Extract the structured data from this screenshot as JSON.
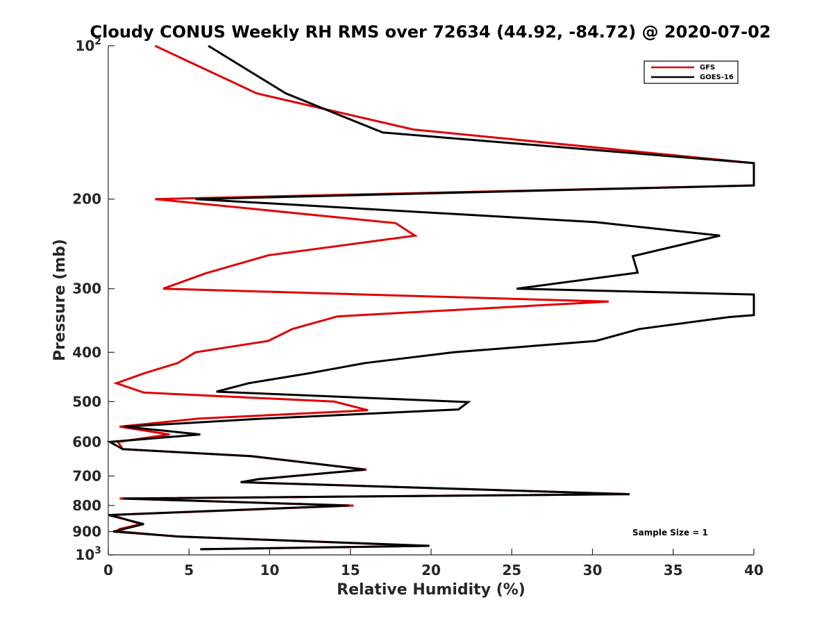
{
  "chart_data": {
    "type": "line",
    "title": "Cloudy CONUS Weekly RH RMS over 72634 (44.92, -84.72) @ 2020-07-02",
    "xlabel": "Relative Humidity (%)",
    "ylabel": "Pressure (mb)",
    "xlim": [
      0,
      40
    ],
    "ylim": [
      100,
      1000
    ],
    "yscale": "log",
    "y_reversed": true,
    "grid": false,
    "legend_position": "top-right",
    "annotation": "Sample Size = 1",
    "x_ticks": [
      "0",
      "5",
      "10",
      "15",
      "20",
      "25",
      "30",
      "35",
      "40"
    ],
    "y_ticks": [
      {
        "value": 100,
        "base": "10",
        "exp": "2"
      },
      {
        "value": 200,
        "base": "200",
        "exp": ""
      },
      {
        "value": 300,
        "base": "300",
        "exp": ""
      },
      {
        "value": 400,
        "base": "400",
        "exp": ""
      },
      {
        "value": 500,
        "base": "500",
        "exp": ""
      },
      {
        "value": 600,
        "base": "600",
        "exp": ""
      },
      {
        "value": 700,
        "base": "700",
        "exp": ""
      },
      {
        "value": 800,
        "base": "800",
        "exp": ""
      },
      {
        "value": 900,
        "base": "900",
        "exp": ""
      },
      {
        "value": 1000,
        "base": "10",
        "exp": "3"
      }
    ],
    "series": [
      {
        "name": "GFS",
        "color": "#e00000",
        "x": [
          2.9,
          9.2,
          18.9,
          40.0,
          40.0,
          40.0,
          40.0,
          2.9,
          17.8,
          19.0,
          9.9,
          6.0,
          3.4,
          31.0,
          14.2,
          11.4,
          9.9,
          5.4,
          4.3,
          2.2,
          0.5,
          2.2,
          14.0,
          16.1,
          5.6,
          0.7,
          3.8,
          0.6,
          0.9,
          8.8,
          16.0,
          9.3,
          8.4,
          32.3,
          0.7,
          15.2,
          0.2,
          2.0,
          0.7,
          0.8,
          4.2,
          19.8,
          5.7
        ],
        "y": [
          100,
          124,
          146,
          170,
          173,
          184,
          188,
          200,
          223,
          236,
          258,
          280,
          300,
          318,
          340,
          360,
          380,
          400,
          420,
          440,
          460,
          480,
          500,
          520,
          540,
          560,
          580,
          600,
          620,
          640,
          680,
          710,
          720,
          760,
          775,
          800,
          835,
          870,
          890,
          900,
          920,
          960,
          975
        ]
      },
      {
        "name": "GOES-16",
        "color": "#000000",
        "x": [
          6.2,
          11.0,
          17.0,
          40.0,
          40.0,
          40.0,
          40.0,
          5.4,
          30.2,
          37.9,
          32.5,
          32.8,
          25.3,
          40.0,
          40.0,
          38.5,
          32.9,
          30.2,
          21.4,
          15.9,
          12.4,
          8.7,
          6.7,
          22.3,
          21.7,
          9.6,
          1.0,
          5.7,
          0.1,
          0.9,
          8.9,
          15.9,
          9.3,
          8.2,
          32.3,
          0.9,
          14.9,
          0.0,
          2.2,
          0.3,
          4.3,
          19.9,
          5.7
        ],
        "y": [
          100,
          124,
          148,
          170,
          172,
          184,
          188,
          200,
          222,
          236,
          259,
          279,
          300,
          308,
          338,
          341,
          360,
          380,
          400,
          420,
          440,
          460,
          478,
          501,
          518,
          540,
          560,
          580,
          600,
          620,
          640,
          680,
          710,
          720,
          760,
          775,
          800,
          835,
          870,
          900,
          920,
          960,
          975
        ]
      }
    ]
  }
}
